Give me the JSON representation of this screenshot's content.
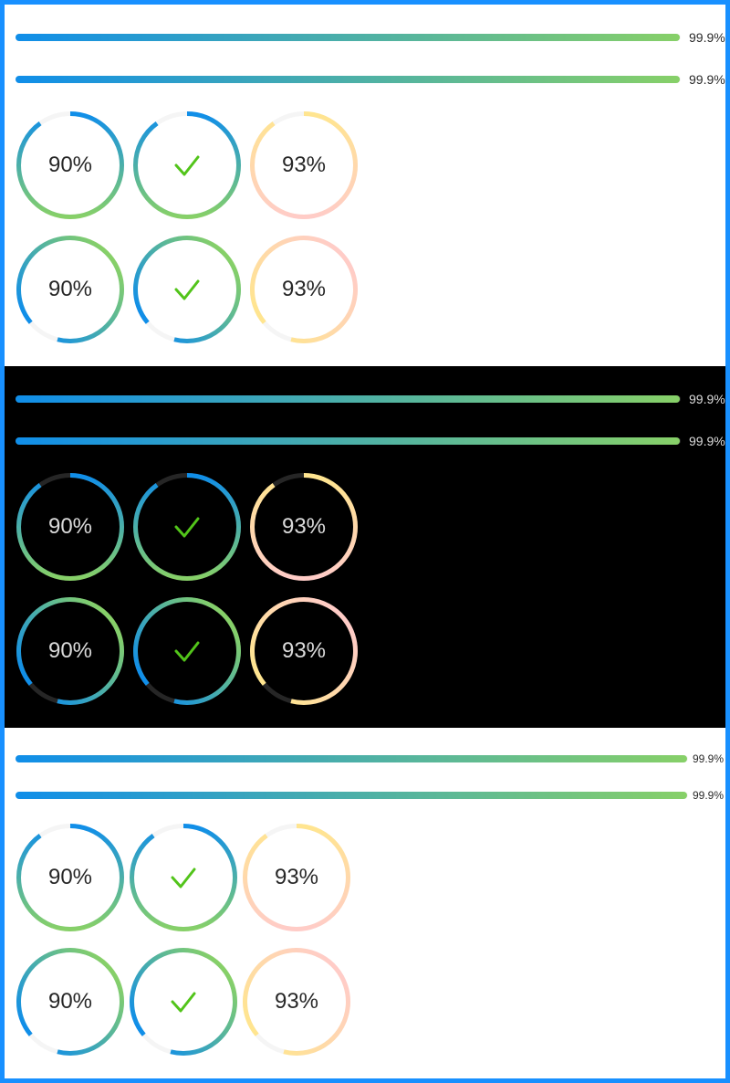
{
  "colors": {
    "frame_border": "#1890ff",
    "track_light": "#f5f5f5",
    "track_dark": "#262626",
    "gradient_start": "#108ee9",
    "gradient_end": "#87d068",
    "warm_start": "#ffe58f",
    "warm_end": "#ffccc7",
    "success_check": "#52c41a"
  },
  "sections": [
    {
      "theme": "light",
      "bars": [
        {
          "percent": 99.9,
          "label": "99.9%"
        },
        {
          "percent": 99.9,
          "label": "99.9%"
        }
      ],
      "circle_rows": [
        [
          {
            "percent": 90,
            "label": "90%",
            "status": "normal",
            "gradient": "blue-green",
            "gap_position": "top"
          },
          {
            "percent": 100,
            "label": "",
            "status": "success",
            "gradient": "blue-green",
            "gap_position": "top"
          },
          {
            "percent": 93,
            "label": "93%",
            "status": "normal",
            "gradient": "warm",
            "gap_position": "top"
          }
        ],
        [
          {
            "percent": 90,
            "label": "90%",
            "status": "normal",
            "gradient": "blue-green",
            "gap_position": "top"
          },
          {
            "percent": 100,
            "label": "",
            "status": "success",
            "gradient": "blue-green",
            "gap_position": "top"
          },
          {
            "percent": 93,
            "label": "93%",
            "status": "normal",
            "gradient": "warm",
            "gap_position": "top"
          }
        ]
      ]
    },
    {
      "theme": "dark",
      "bars": [
        {
          "percent": 99.9,
          "label": "99.9%"
        },
        {
          "percent": 99.9,
          "label": "99.9%"
        }
      ],
      "circle_rows": [
        [
          {
            "percent": 90,
            "label": "90%",
            "status": "normal",
            "gradient": "blue-green"
          },
          {
            "percent": 100,
            "label": "",
            "status": "success",
            "gradient": "blue-green"
          },
          {
            "percent": 93,
            "label": "93%",
            "status": "normal",
            "gradient": "warm"
          }
        ],
        [
          {
            "percent": 90,
            "label": "90%",
            "status": "normal",
            "gradient": "blue-green"
          },
          {
            "percent": 100,
            "label": "",
            "status": "success",
            "gradient": "blue-green"
          },
          {
            "percent": 93,
            "label": "93%",
            "status": "normal",
            "gradient": "warm"
          }
        ]
      ]
    },
    {
      "theme": "light",
      "bars": [
        {
          "percent": 99.9,
          "label": "99.9%"
        },
        {
          "percent": 99.9,
          "label": "99.9%"
        }
      ],
      "circle_rows": [
        [
          {
            "percent": 90,
            "label": "90%",
            "status": "normal",
            "gradient": "blue-green"
          },
          {
            "percent": 100,
            "label": "",
            "status": "success",
            "gradient": "blue-green"
          },
          {
            "percent": 93,
            "label": "93%",
            "status": "normal",
            "gradient": "warm"
          }
        ],
        [
          {
            "percent": 90,
            "label": "90%",
            "status": "normal",
            "gradient": "blue-green"
          },
          {
            "percent": 100,
            "label": "",
            "status": "success",
            "gradient": "blue-green"
          },
          {
            "percent": 93,
            "label": "93%",
            "status": "normal",
            "gradient": "warm"
          }
        ]
      ]
    }
  ]
}
